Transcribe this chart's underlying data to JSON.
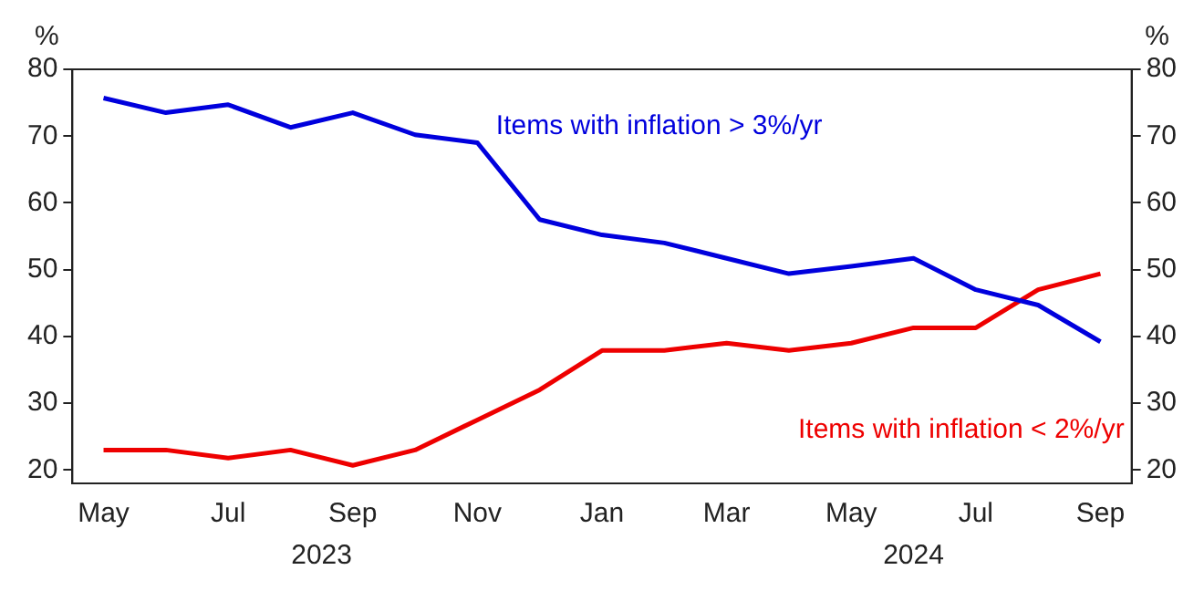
{
  "chart_data": {
    "type": "line",
    "categories": [
      "May",
      null,
      "Jul",
      null,
      "Sep",
      null,
      "Nov",
      null,
      "Jan",
      null,
      "Mar",
      null,
      "May",
      null,
      "Jul",
      null,
      "Sep"
    ],
    "series": [
      {
        "name": "Items with inflation > 3%/yr",
        "color": "#0000dd",
        "values": [
          75.7,
          73.5,
          74.7,
          71.3,
          73.5,
          70.2,
          69,
          57.5,
          55.2,
          54,
          51.7,
          49.4,
          50.5,
          51.7,
          47,
          44.7,
          39.2
        ]
      },
      {
        "name": "Items with inflation < 2%/yr",
        "color": "#ee0000",
        "values": [
          23,
          23,
          21.8,
          23,
          20.7,
          23,
          27.5,
          32,
          37.9,
          37.9,
          39,
          37.9,
          39,
          41.3,
          41.3,
          47,
          49.4
        ]
      }
    ],
    "ylabel": "%",
    "y2label": "%",
    "ylim": [
      18,
      80
    ],
    "yticks": [
      20,
      30,
      40,
      50,
      60,
      70,
      80
    ],
    "y2lim": [
      18,
      80
    ],
    "y2ticks": [
      20,
      30,
      40,
      50,
      60,
      70,
      80
    ],
    "annotations": [
      "2023",
      "2024"
    ],
    "grid": false,
    "legend": false,
    "marker": "none",
    "line_style": "solid"
  }
}
